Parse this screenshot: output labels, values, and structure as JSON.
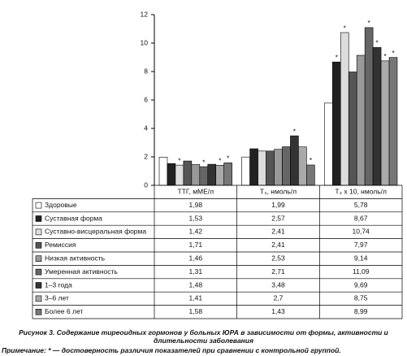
{
  "chart_data": {
    "type": "bar",
    "caption": "Рисунок 3. Содержание тиреоидных гормонов у больных ЮРА в зависимости от формы, активности и длительности заболевания",
    "note": "Примечание: * — достоверность различия показателей при сравнении с контрольной группой.",
    "categories": [
      "ТТГ, мМЕ/л",
      "T₃, нмоль/л",
      "T₄ x 10, нмоль/л"
    ],
    "ylim": [
      0,
      12
    ],
    "yticks": [
      0,
      2,
      4,
      6,
      8,
      10,
      12
    ],
    "series": [
      {
        "name": "Здоровые",
        "color": "#ffffff",
        "values": [
          1.98,
          1.99,
          5.78
        ],
        "value_labels": [
          "1,98",
          "1,99",
          "5,78"
        ],
        "stars": [
          null,
          null,
          null
        ]
      },
      {
        "name": "Суставная форма",
        "color": "#222222",
        "values": [
          1.53,
          2.57,
          8.67
        ],
        "value_labels": [
          "1,53",
          "2,57",
          "8,67"
        ],
        "stars": [
          null,
          null,
          "*"
        ]
      },
      {
        "name": "Суставно-висцеральная форма",
        "color": "#dddddd",
        "values": [
          1.42,
          2.41,
          10.74
        ],
        "value_labels": [
          "1,42",
          "2,41",
          "10,74"
        ],
        "stars": [
          "*",
          null,
          "*"
        ]
      },
      {
        "name": "Ремиссия",
        "color": "#555555",
        "values": [
          1.71,
          2.41,
          7.97
        ],
        "value_labels": [
          "1,71",
          "2,41",
          "7,97"
        ],
        "stars": [
          null,
          null,
          null
        ]
      },
      {
        "name": "Низкая активность",
        "color": "#999999",
        "values": [
          1.46,
          2.53,
          9.14
        ],
        "value_labels": [
          "1,46",
          "2,53",
          "9,14"
        ],
        "stars": [
          null,
          null,
          null
        ]
      },
      {
        "name": "Умеренная активность",
        "color": "#666666",
        "values": [
          1.31,
          2.71,
          11.09
        ],
        "value_labels": [
          "1,31",
          "2,71",
          "11,09"
        ],
        "stars": [
          "*",
          null,
          "*"
        ]
      },
      {
        "name": "1–3 года",
        "color": "#333333",
        "values": [
          1.48,
          3.48,
          9.69
        ],
        "value_labels": [
          "1,48",
          "3,48",
          "9,69"
        ],
        "stars": [
          null,
          "*",
          "*"
        ]
      },
      {
        "name": "3–6 лет",
        "color": "#aaaaaa",
        "values": [
          1.41,
          2.7,
          8.75
        ],
        "value_labels": [
          "1,41",
          "2,7",
          "8,75"
        ],
        "stars": [
          "*",
          null,
          "*"
        ]
      },
      {
        "name": "Более 6 лет",
        "color": "#777777",
        "values": [
          1.58,
          1.43,
          8.99
        ],
        "value_labels": [
          "1,58",
          "1,43",
          "8,99"
        ],
        "stars": [
          "*",
          "*",
          "*"
        ]
      }
    ]
  }
}
